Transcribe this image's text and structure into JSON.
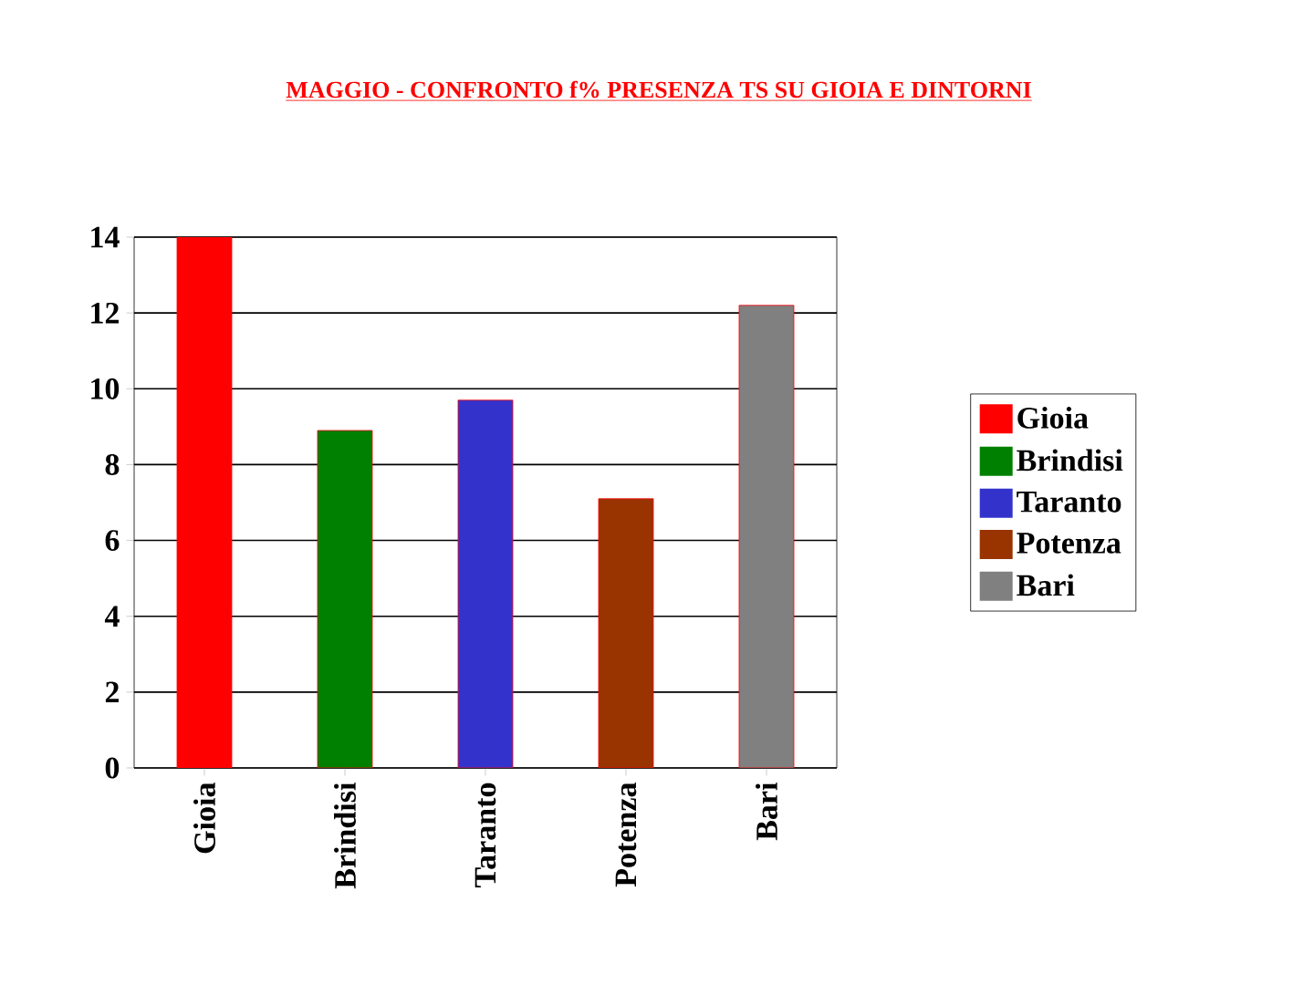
{
  "chart_data": {
    "type": "bar",
    "title": "MAGGIO - CONFRONTO f%  PRESENZA TS  SU GIOIA  E  DINTORNI",
    "categories": [
      "Gioia",
      "Brindisi",
      "Taranto",
      "Potenza",
      "Bari"
    ],
    "series": [
      {
        "name": "Gioia",
        "color": "#ff0000",
        "values": [
          14.0,
          null,
          null,
          null,
          null
        ]
      },
      {
        "name": "Brindisi",
        "color": "#008000",
        "values": [
          null,
          8.9,
          null,
          null,
          null
        ]
      },
      {
        "name": "Taranto",
        "color": "#3333cc",
        "values": [
          null,
          null,
          9.7,
          null,
          null
        ]
      },
      {
        "name": "Potenza",
        "color": "#993300",
        "values": [
          null,
          null,
          null,
          7.1,
          null
        ]
      },
      {
        "name": "Bari",
        "color": "#808080",
        "values": [
          null,
          null,
          null,
          null,
          12.2
        ]
      }
    ],
    "stacked": true,
    "ylim": [
      0,
      14
    ],
    "yticks": [
      0,
      2,
      4,
      6,
      8,
      10,
      12,
      14
    ],
    "grid": "y",
    "legend": "right"
  }
}
